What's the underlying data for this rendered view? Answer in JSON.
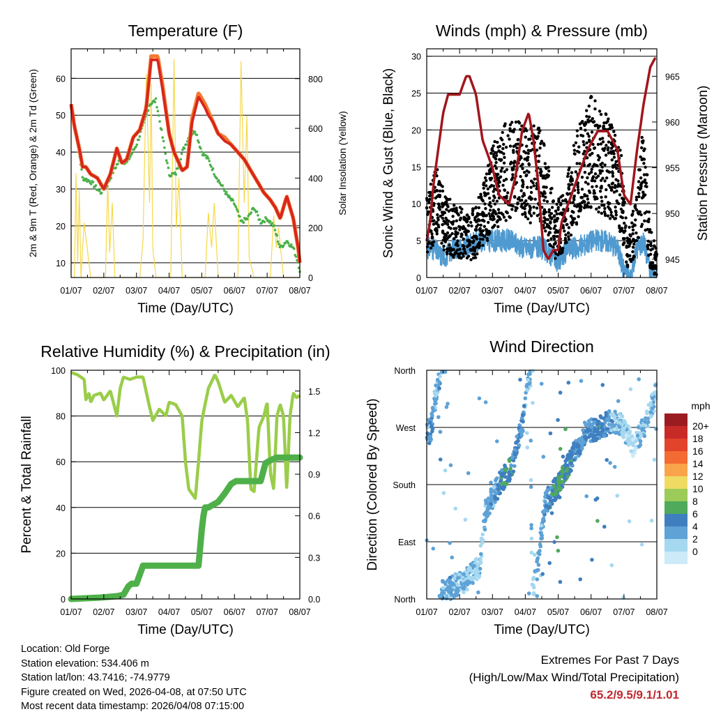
{
  "chart_data": [
    {
      "type": "line",
      "title": "Temperature (F)",
      "xlabel": "Time (Day/UTC)",
      "ylabel": "2m & 9m T (Red, Orange) & 2m Td (Green)",
      "y2label": "Solar Insolation (Yellow)",
      "x_ticks": [
        "01/07",
        "02/07",
        "03/07",
        "04/07",
        "05/07",
        "06/07",
        "07/07",
        "08/07"
      ],
      "ylim": [
        6,
        68
      ],
      "y_ticks": [
        10,
        20,
        30,
        40,
        50,
        60
      ],
      "y2lim": [
        0,
        920
      ],
      "y2_ticks": [
        0,
        200,
        400,
        600,
        800
      ],
      "colors": {
        "t2m": "#d7261e",
        "t9m": "#f47a30",
        "td2m": "#4ab04a",
        "solar": "#f6d84a"
      },
      "series": [
        {
          "name": "2m T",
          "x": [
            0,
            0.1,
            0.25,
            0.35,
            0.45,
            0.6,
            0.8,
            1.0,
            1.2,
            1.4,
            1.55,
            1.7,
            1.9,
            2.1,
            2.3,
            2.45,
            2.65,
            2.8,
            3.0,
            3.15,
            3.3,
            3.4,
            3.55,
            3.7,
            3.9,
            4.1,
            4.2,
            4.35,
            4.5,
            4.7,
            4.9,
            5.1,
            5.3,
            5.5,
            5.7,
            5.9,
            6.1,
            6.25,
            6.4,
            6.6,
            6.8,
            6.95,
            7.0
          ],
          "values": [
            53,
            47,
            41,
            36,
            36,
            34,
            33,
            30,
            34,
            41,
            37,
            38,
            44,
            46,
            52,
            65,
            65,
            57,
            45,
            40,
            37,
            35,
            36,
            48,
            55,
            52,
            50,
            48,
            45,
            43,
            42,
            40,
            38,
            35,
            32,
            29,
            27,
            25,
            22,
            28,
            22,
            14,
            10
          ]
        },
        {
          "name": "9m T",
          "x": [
            0,
            0.1,
            0.25,
            0.35,
            0.45,
            0.6,
            0.8,
            1.0,
            1.2,
            1.4,
            1.55,
            1.7,
            1.9,
            2.1,
            2.3,
            2.45,
            2.65,
            2.8,
            3.0,
            3.15,
            3.3,
            3.4,
            3.55,
            3.7,
            3.9,
            4.1,
            4.2,
            4.35,
            4.5,
            4.7,
            4.9,
            5.1,
            5.3,
            5.5,
            5.7,
            5.9,
            6.1,
            6.25,
            6.4,
            6.6,
            6.8,
            6.95,
            7.0
          ],
          "values": [
            53,
            47,
            41,
            36,
            36,
            34,
            33,
            30,
            34,
            41,
            37,
            38,
            44,
            46,
            52,
            66,
            66,
            58,
            45,
            40,
            37,
            35,
            36,
            49,
            56,
            53,
            51,
            48,
            45,
            44,
            42,
            40,
            38,
            35,
            32,
            29,
            27,
            25,
            22,
            28,
            22,
            14,
            10
          ]
        },
        {
          "name": "2m Td",
          "x": [
            0,
            0.2,
            0.35,
            0.6,
            0.9,
            1.1,
            1.3,
            1.5,
            1.7,
            2.0,
            2.2,
            2.4,
            2.6,
            2.8,
            3.0,
            3.2,
            3.4,
            3.6,
            3.8,
            4.0,
            4.2,
            4.4,
            4.6,
            4.8,
            5.0,
            5.2,
            5.4,
            5.6,
            5.8,
            6.0,
            6.2,
            6.4,
            6.6,
            6.8,
            6.95,
            7.0
          ],
          "values": [
            52,
            43,
            33,
            32,
            29,
            31,
            35,
            38,
            37,
            42,
            47,
            53,
            54,
            44,
            34,
            34,
            40,
            44,
            46,
            40,
            38,
            34,
            31,
            28,
            26,
            21,
            22,
            25,
            21,
            22,
            20,
            14,
            16,
            14,
            10,
            8
          ]
        },
        {
          "name": "Solar Insolation",
          "axis": "y2",
          "x": [
            0.1,
            0.15,
            0.2,
            0.25,
            0.3,
            0.4,
            0.6,
            1.05,
            1.12,
            1.18,
            1.26,
            1.34,
            1.55,
            2.1,
            2.2,
            2.3,
            2.4,
            2.45,
            2.5,
            2.6,
            3.05,
            3.15,
            3.22,
            3.3,
            3.4,
            3.6,
            4.1,
            4.2,
            4.3,
            4.38,
            4.5,
            4.7,
            5.1,
            5.2,
            5.3,
            5.38,
            5.45,
            5.6,
            5.9,
            6.1,
            6.2,
            6.28,
            6.35,
            6.5,
            7.0
          ],
          "values": [
            0,
            420,
            60,
            350,
            0,
            220,
            0,
            0,
            380,
            100,
            300,
            0,
            0,
            0,
            150,
            820,
            300,
            780,
            120,
            0,
            0,
            880,
            200,
            400,
            0,
            0,
            0,
            260,
            120,
            300,
            0,
            0,
            0,
            870,
            300,
            650,
            80,
            0,
            0,
            0,
            250,
            120,
            200,
            0,
            0
          ]
        }
      ]
    },
    {
      "type": "line",
      "title": "Winds (mph) & Pressure (mb)",
      "xlabel": "Time (Day/UTC)",
      "ylabel": "Sonic Wind & Gust (Blue, Black)",
      "y2label": "Station Pressure (Maroon)",
      "x_ticks": [
        "01/07",
        "02/07",
        "03/07",
        "04/07",
        "05/07",
        "06/07",
        "07/07",
        "08/07"
      ],
      "ylim": [
        0,
        31
      ],
      "y_ticks": [
        0,
        5,
        10,
        15,
        20,
        25,
        30
      ],
      "y2lim": [
        943,
        968
      ],
      "y2_ticks": [
        945,
        950,
        955,
        960,
        965
      ],
      "colors": {
        "wind": "#4f9ad0",
        "gust": "#000000",
        "pressure": "#a0161c"
      },
      "series": [
        {
          "name": "Station Pressure",
          "axis": "y2",
          "x": [
            0,
            0.1,
            0.2,
            0.35,
            0.5,
            0.65,
            0.8,
            1.0,
            1.2,
            1.3,
            1.5,
            1.7,
            2.0,
            2.2,
            2.5,
            2.7,
            2.9,
            3.1,
            3.25,
            3.4,
            3.55,
            3.7,
            3.85,
            4.0,
            4.1,
            4.3,
            4.6,
            4.9,
            5.2,
            5.5,
            5.8,
            6.0,
            6.2,
            6.4,
            6.6,
            6.8,
            6.95
          ],
          "values": [
            947,
            949,
            953,
            957,
            961,
            963,
            963,
            963,
            965,
            965,
            963,
            958,
            955,
            952,
            951,
            954,
            959,
            961,
            958,
            953,
            946,
            945,
            946,
            946,
            949,
            951,
            954,
            957,
            959,
            959,
            957,
            952,
            951,
            957,
            962,
            966,
            967
          ]
        },
        {
          "name": "Sonic Wind",
          "x": [
            0,
            0.2,
            0.4,
            0.6,
            0.8,
            1.0,
            1.2,
            1.5,
            2.0,
            2.5,
            3.0,
            3.5,
            3.8,
            4.0,
            4.3,
            4.6,
            5.0,
            5.5,
            5.8,
            6.0,
            6.2,
            6.4,
            6.6,
            6.8,
            7.0
          ],
          "values": [
            4,
            4,
            3,
            3,
            4,
            4,
            4,
            5,
            5,
            5,
            4,
            4,
            3,
            2,
            4,
            4,
            5,
            5,
            4,
            1,
            0,
            4,
            5,
            1,
            0
          ]
        },
        {
          "name": "Gust",
          "x": [
            0,
            0.3,
            0.6,
            1.0,
            1.5,
            2.0,
            2.5,
            3.0,
            3.5,
            3.9,
            4.2,
            4.6,
            5.0,
            5.5,
            5.9,
            6.1,
            6.4,
            6.6,
            6.8,
            7.0
          ],
          "values": [
            7,
            10,
            7,
            6,
            6,
            12,
            15,
            14,
            14,
            6,
            8,
            14,
            17,
            15,
            12,
            3,
            8,
            15,
            4,
            2
          ]
        }
      ]
    },
    {
      "type": "line",
      "title": "Relative Humidity (%) & Precipitation (in)",
      "xlabel": "Time (Day/UTC)",
      "ylabel": "Percent & Total Rainfall",
      "x_ticks": [
        "01/07",
        "02/07",
        "03/07",
        "04/07",
        "05/07",
        "06/07",
        "07/07",
        "08/07"
      ],
      "ylim": [
        0,
        100
      ],
      "y_ticks": [
        0,
        20,
        40,
        60,
        80,
        100
      ],
      "y2lim": [
        0,
        1.65
      ],
      "y2_ticks": [
        "0.0",
        "0.3",
        "0.6",
        "0.9",
        "1.2",
        "1.5"
      ],
      "colors": {
        "rh": "#9acd4a",
        "precip": "#4fb04a"
      },
      "series": [
        {
          "name": "Relative Humidity",
          "x": [
            0,
            0.2,
            0.4,
            0.45,
            0.55,
            0.6,
            0.7,
            0.9,
            1.0,
            1.2,
            1.4,
            1.5,
            1.6,
            1.8,
            2.0,
            2.2,
            2.4,
            2.5,
            2.7,
            2.9,
            3.0,
            3.2,
            3.4,
            3.5,
            3.6,
            3.8,
            3.9,
            4.0,
            4.2,
            4.4,
            4.5,
            4.7,
            4.9,
            5.1,
            5.3,
            5.4,
            5.5,
            5.6,
            5.75,
            5.9,
            6.0,
            6.1,
            6.2,
            6.3,
            6.4,
            6.5,
            6.6,
            6.7,
            6.8,
            6.9,
            7.0
          ],
          "values": [
            99,
            98,
            96,
            87,
            90,
            86,
            89,
            90,
            87,
            91,
            80,
            92,
            97,
            96,
            97,
            97,
            84,
            78,
            83,
            80,
            86,
            85,
            80,
            60,
            48,
            44,
            60,
            78,
            92,
            98,
            95,
            86,
            89,
            84,
            88,
            78,
            48,
            47,
            75,
            80,
            86,
            55,
            48,
            80,
            85,
            80,
            48,
            80,
            90,
            88,
            89
          ]
        },
        {
          "name": "Total Precipitation",
          "axis": "y2",
          "x": [
            0,
            0.9,
            1.4,
            1.6,
            1.75,
            1.85,
            2.0,
            2.2,
            3.5,
            3.9,
            4.0,
            4.05,
            4.1,
            4.2,
            4.5,
            4.7,
            4.9,
            5.05,
            5.2,
            5.8,
            5.95,
            6.1,
            6.3,
            7.0
          ],
          "values": [
            0,
            0.01,
            0.02,
            0.03,
            0.09,
            0.11,
            0.11,
            0.24,
            0.24,
            0.24,
            0.5,
            0.6,
            0.66,
            0.66,
            0.7,
            0.76,
            0.83,
            0.85,
            0.85,
            0.85,
            0.98,
            1.0,
            1.02,
            1.02
          ]
        }
      ]
    },
    {
      "type": "scatter",
      "title": "Wind Direction",
      "xlabel": "Time (Day/UTC)",
      "ylabel": "Direction (Colored By Speed)",
      "x_ticks": [
        "01/07",
        "02/07",
        "03/07",
        "04/07",
        "05/07",
        "06/07",
        "07/07",
        "08/07"
      ],
      "y_ticks": [
        "North",
        "East",
        "South",
        "West",
        "North"
      ],
      "ylim": [
        0,
        360
      ],
      "colorbar": {
        "title": "mph",
        "labels": [
          "20+",
          "18",
          "16",
          "14",
          "12",
          "10",
          "8",
          "6",
          "4",
          "2",
          "0"
        ],
        "colors": [
          "#9b1c20",
          "#c82a27",
          "#e2432b",
          "#f36b32",
          "#f9a44a",
          "#efdb63",
          "#9ccb59",
          "#4faa5c",
          "#3f7fbf",
          "#5ea2d6",
          "#a6d8f0",
          "#cceaf7"
        ]
      },
      "series": [
        {
          "name": "Direction",
          "x": [
            0,
            0.1,
            0.2,
            0.3,
            0.4,
            0.45,
            0.5,
            0.6,
            0.7,
            0.8,
            1.0,
            1.2,
            1.4,
            1.6,
            1.8,
            2.0,
            2.2,
            2.4,
            2.6,
            2.8,
            3.0,
            3.1,
            3.15,
            3.2,
            3.3,
            3.4,
            3.6,
            3.8,
            4.0,
            4.2,
            4.4,
            4.6,
            4.8,
            5.0,
            5.3,
            5.6,
            5.9,
            6.1,
            6.3,
            6.6,
            6.9,
            7.0
          ],
          "values": [
            270,
            260,
            290,
            330,
            350,
            5,
            15,
            10,
            15,
            20,
            25,
            30,
            40,
            50,
            140,
            160,
            180,
            195,
            210,
            250,
            300,
            350,
            355,
            10,
            30,
            60,
            150,
            165,
            180,
            200,
            220,
            240,
            260,
            265,
            270,
            280,
            275,
            260,
            240,
            270,
            310,
            330
          ],
          "speeds": [
            4,
            5,
            4,
            3,
            4,
            4,
            3,
            3,
            4,
            4,
            3,
            3,
            3,
            2,
            4,
            4,
            5,
            7,
            6,
            5,
            4,
            3,
            3,
            2,
            3,
            4,
            4,
            6,
            7,
            6,
            6,
            5,
            5,
            5,
            6,
            4,
            3,
            2,
            1,
            4,
            3,
            2
          ]
        }
      ]
    }
  ],
  "footer": {
    "location": "Location: Old Forge",
    "elevation": "Station elevation: 534.406 m",
    "latlon": "Station lat/lon: 43.7416; -74.9779",
    "created": "Figure created on Wed, 2026-04-08, at 07:50 UTC",
    "recent": "Most recent data timestamp: 2026/04/08 07:15:00"
  },
  "extremes": {
    "title": "Extremes For Past 7 Days",
    "subtitle": "(High/Low/Max Wind/Total Precipitation)",
    "values": "65.2/9.5/9.1/1.01"
  }
}
